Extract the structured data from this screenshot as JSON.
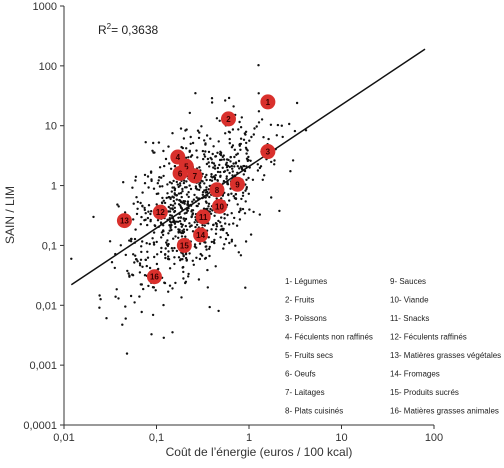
{
  "chart_data": {
    "type": "scatter",
    "title": "",
    "xlabel": "Coût de l’énergie (euros / 100 kcal)",
    "ylabel": "SAIN / LIM",
    "xscale": "log",
    "yscale": "log",
    "xlim": [
      0.01,
      100
    ],
    "ylim": [
      0.0001,
      1000
    ],
    "x_ticks": [
      "0,01",
      "0,1",
      "1",
      "10",
      "100"
    ],
    "y_ticks": [
      "0,0001",
      "0,001",
      "0,01",
      "0,1",
      "1",
      "10",
      "100",
      "1000"
    ],
    "annotation": {
      "r2_label": "R",
      "r2_sup": "2",
      "r2_value": "= 0,3638"
    },
    "regression_line": {
      "from": [
        0.012,
        0.022
      ],
      "to": [
        80,
        190
      ]
    },
    "scatter_count": 900,
    "highlight_color": "#d9302c",
    "highlighted_points": [
      {
        "id": "1",
        "x": 1.6,
        "y": 25
      },
      {
        "id": "2",
        "x": 0.6,
        "y": 13
      },
      {
        "id": "3",
        "x": 1.6,
        "y": 3.7
      },
      {
        "id": "4",
        "x": 0.17,
        "y": 3.0
      },
      {
        "id": "5",
        "x": 0.21,
        "y": 2.1
      },
      {
        "id": "6",
        "x": 0.18,
        "y": 1.6
      },
      {
        "id": "7",
        "x": 0.26,
        "y": 1.45
      },
      {
        "id": "8",
        "x": 0.45,
        "y": 0.85
      },
      {
        "id": "9",
        "x": 0.75,
        "y": 1.05
      },
      {
        "id": "10",
        "x": 0.48,
        "y": 0.45
      },
      {
        "id": "11",
        "x": 0.32,
        "y": 0.3
      },
      {
        "id": "12",
        "x": 0.11,
        "y": 0.36
      },
      {
        "id": "13",
        "x": 0.045,
        "y": 0.26
      },
      {
        "id": "14",
        "x": 0.3,
        "y": 0.15
      },
      {
        "id": "15",
        "x": 0.2,
        "y": 0.1
      },
      {
        "id": "16",
        "x": 0.095,
        "y": 0.03
      }
    ],
    "legend": [
      "1- Légumes",
      "2- Fruits",
      "3- Poissons",
      "4- Féculents non raffinés",
      "5- Fruits secs",
      "6- Oeufs",
      "7- Laitages",
      "8- Plats cuisinés",
      "9- Sauces",
      "10- Viande",
      "11- Snacks",
      "12- Féculents raffinés",
      "13- Matières grasses végétales",
      "14- Fromages",
      "15- Produits sucrés",
      "16- Matières grasses animales"
    ]
  }
}
